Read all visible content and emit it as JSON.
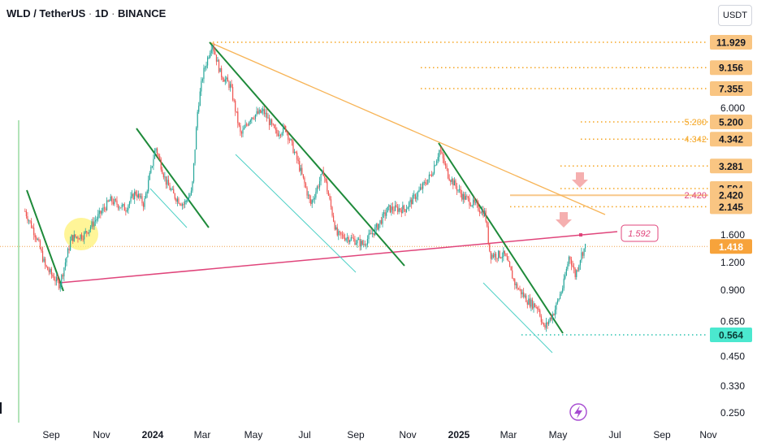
{
  "header": {
    "symbol": "WLD / TetherUS",
    "interval": "1D",
    "exchange": "BINANCE",
    "currency": "USDT"
  },
  "colors": {
    "up": "#26a69a",
    "down": "#ef5350",
    "trend_green": "#1e8a3a",
    "channel_cyan": "#4dd0c6",
    "pink_line": "#e0457b",
    "orange": "#f5a623",
    "price_badge": "#f7a33b",
    "support_badge": "#4be8cf"
  },
  "chart_data": {
    "type": "candlestick",
    "scale": "log",
    "ylim": [
      0.24,
      15
    ],
    "x_ticks": [
      "Sep",
      "Nov",
      "2024",
      "Mar",
      "May",
      "Jul",
      "Sep",
      "Nov",
      "2025",
      "Mar",
      "May",
      "Jul",
      "Sep",
      "Nov"
    ],
    "y_ticks": [
      "6.000",
      "1.600",
      "1.200",
      "0.900",
      "0.650",
      "0.450",
      "0.330",
      "0.250"
    ],
    "current_price": "1.418",
    "trendline_label": "1.592",
    "levels": [
      {
        "price": 11.929,
        "label": "11.929",
        "style": "badge"
      },
      {
        "price": 9.156,
        "label": "9.156",
        "style": "badge"
      },
      {
        "price": 7.355,
        "label": "7.355",
        "style": "badge"
      },
      {
        "price": 5.2,
        "label": "5.200",
        "style": "badge",
        "inline_label": "5.200"
      },
      {
        "price": 4.342,
        "label": "4.342",
        "style": "badge",
        "inline_label": "4.342"
      },
      {
        "price": 3.281,
        "label": "3.281",
        "style": "badge"
      },
      {
        "price": 2.594,
        "label": "2.594",
        "style": "badge"
      },
      {
        "price": 2.42,
        "label": "2.420",
        "style": "badge",
        "inline_label": "2.420"
      },
      {
        "price": 2.145,
        "label": "2.145",
        "style": "badge"
      },
      {
        "price": 0.564,
        "label": "0.564",
        "style": "support"
      }
    ],
    "price_path": [
      [
        "2023-08-01",
        2.05
      ],
      [
        "2023-08-15",
        1.55
      ],
      [
        "2023-08-25",
        1.15
      ],
      [
        "2023-09-11",
        0.95
      ],
      [
        "2023-09-25",
        1.55
      ],
      [
        "2023-10-10",
        1.6
      ],
      [
        "2023-10-25",
        1.9
      ],
      [
        "2023-11-10",
        2.3
      ],
      [
        "2023-11-28",
        2.1
      ],
      [
        "2023-12-10",
        2.5
      ],
      [
        "2023-12-20",
        2.2
      ],
      [
        "2024-01-03",
        4.0
      ],
      [
        "2024-01-15",
        2.8
      ],
      [
        "2024-01-25",
        2.4
      ],
      [
        "2024-02-05",
        2.2
      ],
      [
        "2024-02-15",
        2.5
      ],
      [
        "2024-02-22",
        6.0
      ],
      [
        "2024-02-28",
        8.5
      ],
      [
        "2024-03-10",
        11.9
      ],
      [
        "2024-03-20",
        8.6
      ],
      [
        "2024-04-01",
        7.5
      ],
      [
        "2024-04-13",
        4.5
      ],
      [
        "2024-04-25",
        5.5
      ],
      [
        "2024-05-10",
        5.8
      ],
      [
        "2024-05-25",
        4.6
      ],
      [
        "2024-06-05",
        4.9
      ],
      [
        "2024-06-20",
        3.4
      ],
      [
        "2024-07-05",
        2.2
      ],
      [
        "2024-07-20",
        3.1
      ],
      [
        "2024-08-05",
        1.6
      ],
      [
        "2024-08-20",
        1.55
      ],
      [
        "2024-09-05",
        1.45
      ],
      [
        "2024-09-20",
        1.7
      ],
      [
        "2024-10-05",
        2.1
      ],
      [
        "2024-10-25",
        2.1
      ],
      [
        "2024-11-10",
        2.5
      ],
      [
        "2024-11-25",
        3.0
      ],
      [
        "2024-12-05",
        3.9
      ],
      [
        "2024-12-15",
        3.0
      ],
      [
        "2025-01-01",
        2.4
      ],
      [
        "2025-01-15",
        2.2
      ],
      [
        "2025-01-28",
        2.0
      ],
      [
        "2025-02-03",
        1.3
      ],
      [
        "2025-02-20",
        1.3
      ],
      [
        "2025-03-05",
        0.95
      ],
      [
        "2025-03-20",
        0.8
      ],
      [
        "2025-04-01",
        0.75
      ],
      [
        "2025-04-08",
        0.6
      ],
      [
        "2025-04-20",
        0.72
      ],
      [
        "2025-05-01",
        0.95
      ],
      [
        "2025-05-08",
        1.3
      ],
      [
        "2025-05-15",
        1.05
      ],
      [
        "2025-05-22",
        1.3
      ],
      [
        "2025-05-27",
        1.418
      ]
    ]
  }
}
